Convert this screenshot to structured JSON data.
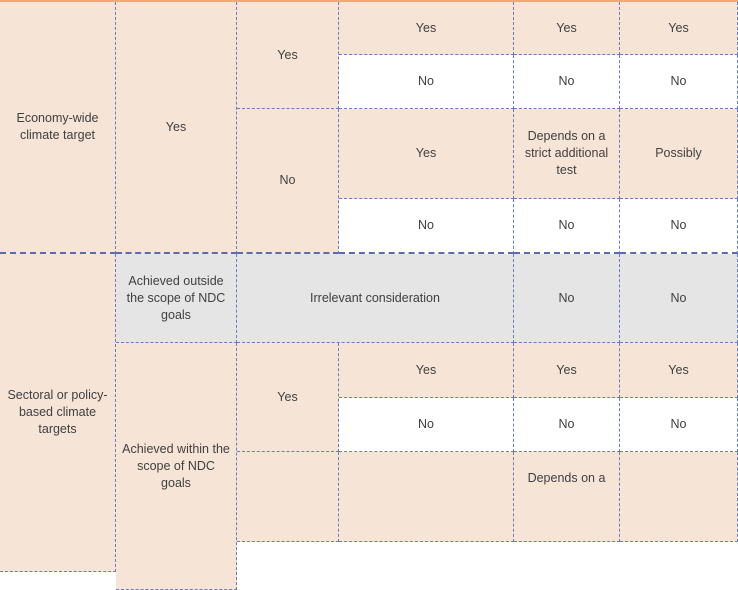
{
  "colors": {
    "peach": "#f6e4d7",
    "grey": "#e5e5e5",
    "border": "#6a7cc0",
    "top_rule": "#f0a878"
  },
  "groupA": {
    "label": "Economy-wide climate target",
    "col1": "Yes",
    "col2": [
      "Yes",
      "No"
    ],
    "rows": [
      [
        "Yes",
        "Yes",
        "Yes"
      ],
      [
        "No",
        "No",
        "No"
      ],
      [
        "Yes",
        "Depends on a strict additional test",
        "Possibly"
      ],
      [
        "No",
        "No",
        "No"
      ]
    ]
  },
  "groupB": {
    "label": "Sectoral or policy-based climate targets",
    "outside": {
      "label": "Achieved outside the scope of NDC goals",
      "merged": "Irrelevant consideration",
      "c4": "No",
      "c5": "No"
    },
    "within": {
      "label": "Achieved within the scope of NDC goals",
      "col2": [
        "Yes"
      ],
      "rows": [
        [
          "Yes",
          "Yes",
          "Yes"
        ],
        [
          "No",
          "No",
          "No"
        ],
        [
          "",
          "Depends on a",
          ""
        ]
      ]
    }
  }
}
